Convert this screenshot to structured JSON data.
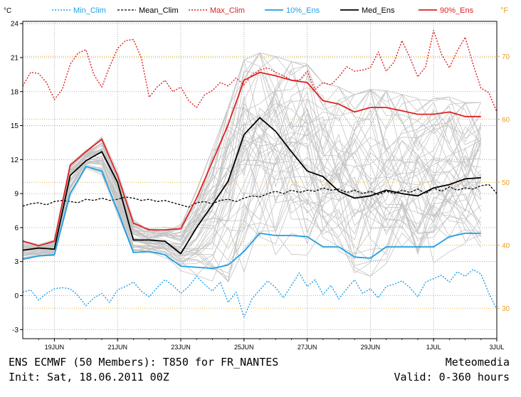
{
  "chart_data": {
    "type": "line",
    "title": "ENS ECMWF (50 Members): T850 for FR_NANTES",
    "init_label": "Init: Sat, 18.06.2011 00Z",
    "brand": "Meteomedia",
    "valid_label": "Valid: 0-360 hours",
    "left_unit": "°C",
    "right_unit": "°F",
    "ylim": [
      -3.8,
      24.2
    ],
    "xlim": [
      0,
      360
    ],
    "y_ticks": [
      -3,
      0,
      3,
      6,
      9,
      12,
      15,
      18,
      21,
      24
    ],
    "y_tick_labels": [
      "-3",
      "0",
      "3",
      "6",
      "9",
      "12",
      "15",
      "18",
      "21",
      "24"
    ],
    "f_ticks": [
      30,
      40,
      50,
      60,
      70
    ],
    "f_tick_labels": [
      "30",
      "40",
      "50",
      "60",
      "70"
    ],
    "x_ticks_h": [
      24,
      72,
      120,
      168,
      216,
      264,
      312,
      360
    ],
    "x_tick_labels": [
      "19JUN",
      "21JUN",
      "23JUN",
      "25JUN",
      "27JUN",
      "29JUN",
      "1JUL",
      "3JUL"
    ],
    "colors": {
      "min_clim": "#1e9fe6",
      "mean_clim": "#000000",
      "max_clim": "#e02020",
      "p10": "#1e9fe6",
      "median": "#000000",
      "p90": "#e02020",
      "members": "#c4c4c4",
      "fahrenheit": "#e8a020",
      "grid": "#9a9a9a"
    },
    "series": [
      {
        "key": "min_clim",
        "name": "Min_Clim",
        "style": "dotted",
        "x": [
          0,
          6,
          12,
          18,
          24,
          30,
          36,
          42,
          48,
          54,
          60,
          66,
          72,
          78,
          84,
          90,
          96,
          102,
          108,
          114,
          120,
          126,
          132,
          138,
          144,
          150,
          156,
          162,
          168,
          174,
          180,
          186,
          192,
          198,
          204,
          210,
          216,
          222,
          228,
          234,
          240,
          246,
          252,
          258,
          264,
          270,
          276,
          282,
          288,
          294,
          300,
          306,
          312,
          318,
          324,
          330,
          336,
          342,
          348,
          354,
          360
        ],
        "values": [
          0.3,
          0.5,
          -0.4,
          0.2,
          0.6,
          0.7,
          0.6,
          0,
          -0.9,
          -0.2,
          0.2,
          -0.6,
          0.5,
          0.8,
          1.2,
          0.4,
          -0.1,
          0.7,
          1.4,
          0.9,
          0.2,
          0.8,
          1.7,
          1.0,
          0.4,
          1.2,
          -0.6,
          0.3,
          -1.9,
          -0.3,
          0.5,
          1.3,
          0.7,
          -0.2,
          0.9,
          2.0,
          0.8,
          1.4,
          0.1,
          0.9,
          -0.3,
          0.6,
          1.4,
          0.2,
          0.6,
          -0.2,
          0.8,
          1.0,
          1.3,
          0.7,
          -0.1,
          1.2,
          1.5,
          1.8,
          1.2,
          2.1,
          1.7,
          2.3,
          1.9,
          0.2,
          -1.2
        ]
      },
      {
        "key": "mean_clim",
        "name": "Mean_Clim",
        "style": "dashed",
        "x": [
          0,
          6,
          12,
          18,
          24,
          30,
          36,
          42,
          48,
          54,
          60,
          66,
          72,
          78,
          84,
          90,
          96,
          102,
          108,
          114,
          120,
          126,
          132,
          138,
          144,
          150,
          156,
          162,
          168,
          174,
          180,
          186,
          192,
          198,
          204,
          210,
          216,
          222,
          228,
          234,
          240,
          246,
          252,
          258,
          264,
          270,
          276,
          282,
          288,
          294,
          300,
          306,
          312,
          318,
          324,
          330,
          336,
          342,
          348,
          354,
          360
        ],
        "values": [
          7.9,
          8.1,
          8.2,
          8.0,
          8.3,
          8.4,
          8.3,
          8.2,
          8.5,
          8.4,
          8.6,
          8.4,
          8.5,
          8.7,
          8.6,
          8.4,
          8.5,
          8.3,
          8.4,
          8.2,
          8.0,
          7.8,
          8.2,
          8.3,
          8.1,
          8.4,
          8.5,
          8.3,
          8.6,
          8.8,
          8.7,
          9.0,
          9.2,
          9.0,
          9.3,
          9.1,
          9.3,
          9.2,
          9.5,
          9.3,
          9.4,
          9.1,
          9.3,
          9.0,
          9.2,
          8.9,
          9.2,
          9.0,
          9.3,
          9.1,
          9.4,
          9.0,
          9.5,
          9.2,
          9.6,
          9.3,
          9.5,
          9.4,
          9.7,
          9.8,
          9.0
        ]
      },
      {
        "key": "max_clim",
        "name": "Max_Clim",
        "style": "dotted",
        "x": [
          0,
          6,
          12,
          18,
          24,
          30,
          36,
          42,
          48,
          54,
          60,
          66,
          72,
          78,
          84,
          90,
          96,
          102,
          108,
          114,
          120,
          126,
          132,
          138,
          144,
          150,
          156,
          162,
          168,
          174,
          180,
          186,
          192,
          198,
          204,
          210,
          216,
          222,
          228,
          234,
          240,
          246,
          252,
          258,
          264,
          270,
          276,
          282,
          288,
          294,
          300,
          306,
          312,
          318,
          324,
          330,
          336,
          342,
          348,
          354,
          360
        ],
        "values": [
          18.5,
          19.7,
          19.6,
          18.8,
          17.3,
          18.2,
          20.4,
          21.4,
          21.7,
          19.5,
          18.4,
          20.2,
          21.8,
          22.5,
          22.6,
          21.0,
          17.5,
          18.4,
          19.0,
          18.0,
          18.4,
          17.2,
          16.6,
          17.7,
          18.1,
          18.8,
          18.5,
          19.2,
          18.6,
          19.5,
          19.9,
          20.1,
          19.7,
          19.4,
          19.0,
          19.0,
          19.8,
          18.2,
          18.8,
          18.6,
          19.3,
          20.2,
          19.8,
          19.9,
          20.1,
          21.5,
          19.8,
          20.6,
          22.5,
          21.0,
          19.3,
          20.2,
          23.4,
          21.3,
          20.1,
          21.6,
          22.8,
          20.4,
          18.3,
          17.9,
          16.2
        ]
      },
      {
        "key": "p10",
        "name": "10%_Ens",
        "style": "solid",
        "x": [
          0,
          12,
          24,
          36,
          48,
          60,
          72,
          84,
          96,
          108,
          120,
          132,
          144,
          156,
          168,
          180,
          192,
          204,
          216,
          228,
          240,
          252,
          264,
          276,
          288,
          300,
          312,
          324,
          336,
          348
        ],
        "values": [
          3.2,
          3.5,
          3.6,
          9.0,
          11.4,
          11.0,
          7.5,
          3.8,
          3.9,
          3.6,
          2.6,
          2.5,
          2.4,
          2.7,
          3.9,
          5.5,
          5.3,
          5.3,
          5.2,
          4.3,
          4.3,
          3.4,
          3.3,
          4.3,
          4.3,
          4.3,
          4.3,
          5.2,
          5.5,
          5.5
        ]
      },
      {
        "key": "median",
        "name": "Med_Ens",
        "style": "solid",
        "x": [
          0,
          12,
          24,
          36,
          48,
          60,
          72,
          84,
          96,
          108,
          120,
          132,
          144,
          156,
          168,
          180,
          192,
          204,
          216,
          228,
          240,
          252,
          264,
          276,
          288,
          300,
          312,
          324,
          336,
          348
        ],
        "values": [
          4.0,
          4.2,
          4.1,
          10.6,
          11.9,
          12.7,
          10.0,
          4.9,
          4.9,
          4.8,
          3.7,
          6.0,
          8.0,
          10.1,
          14.2,
          15.7,
          14.5,
          12.7,
          11.0,
          10.5,
          9.2,
          8.6,
          8.8,
          9.3,
          9.0,
          8.8,
          9.5,
          9.8,
          10.3,
          10.4
        ]
      },
      {
        "key": "p90",
        "name": "90%_Ens",
        "style": "solid",
        "x": [
          0,
          12,
          24,
          36,
          48,
          60,
          72,
          84,
          96,
          108,
          120,
          132,
          144,
          156,
          168,
          180,
          192,
          204,
          216,
          228,
          240,
          252,
          264,
          276,
          288,
          300,
          312,
          324,
          336,
          348
        ],
        "values": [
          4.8,
          4.4,
          4.8,
          11.5,
          12.7,
          13.8,
          10.6,
          6.4,
          5.8,
          5.8,
          5.9,
          8.6,
          11.8,
          15.1,
          19.0,
          19.7,
          19.4,
          19.0,
          18.8,
          17.2,
          16.9,
          16.2,
          16.6,
          16.6,
          16.3,
          16.0,
          16.0,
          16.2,
          15.8,
          15.8
        ]
      }
    ],
    "legend": [
      "Min_Clim",
      "Mean_Clim",
      "Max_Clim",
      "10%_Ens",
      "Med_Ens",
      "90%_Ens"
    ]
  }
}
